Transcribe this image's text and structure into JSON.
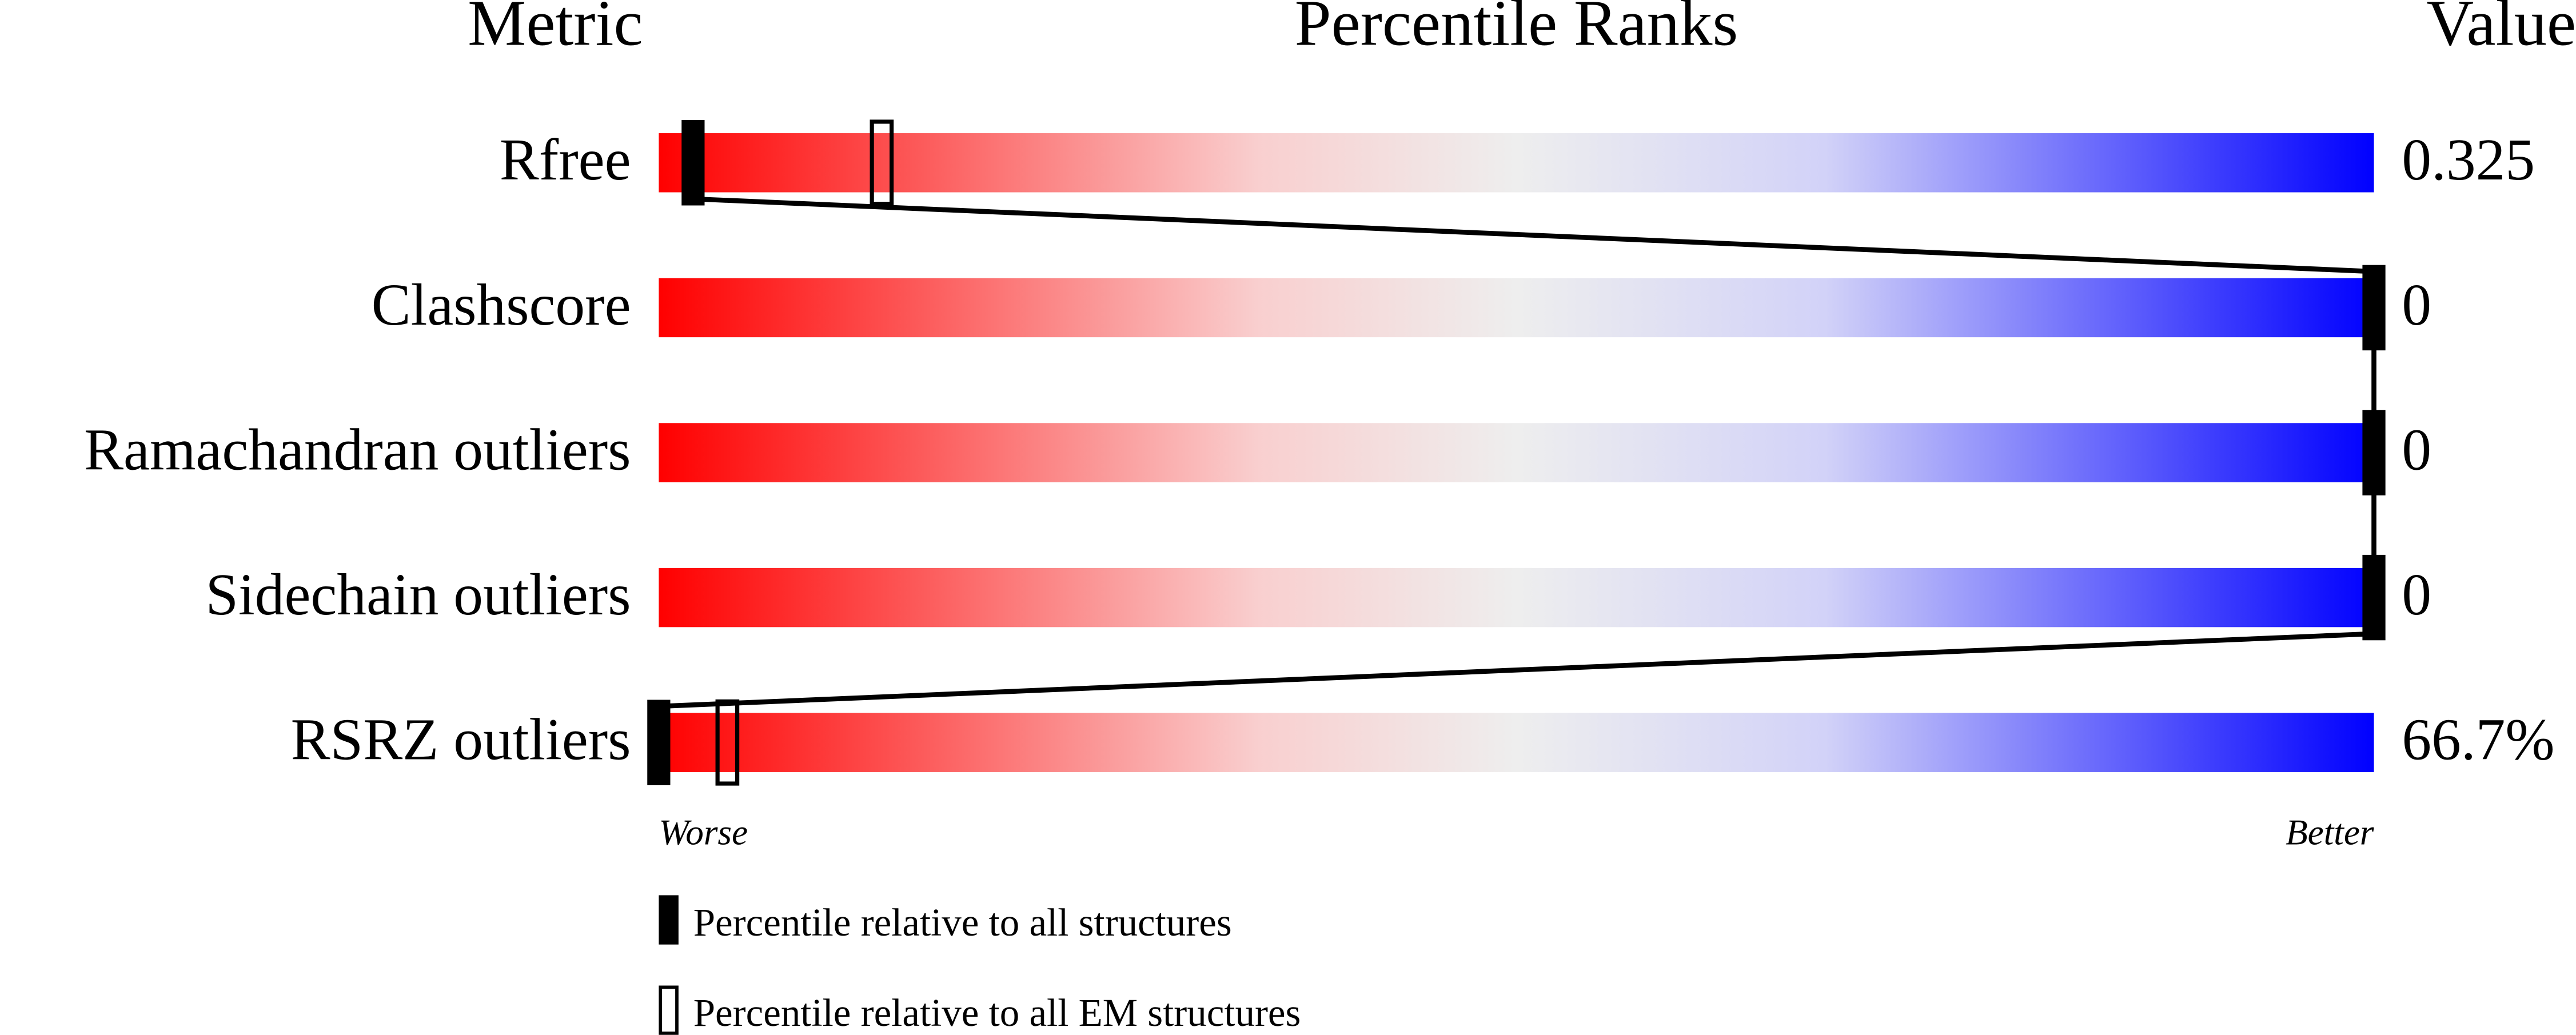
{
  "chart_data": {
    "type": "percentile-slider",
    "headers": [
      "Metric",
      "Percentile Ranks",
      "Value"
    ],
    "categories": [
      "Rfree",
      "Clashscore",
      "Ramachandran outliers",
      "Sidechain outliers",
      "RSRZ outliers"
    ],
    "metric_values": [
      "0.325",
      "0",
      "0",
      "0",
      "66.7%"
    ],
    "series": [
      {
        "name": "Percentile relative to all structures",
        "color": "#000000",
        "values": [
          2,
          100,
          100,
          100,
          0
        ]
      },
      {
        "name": "Percentile relative to all EM structures",
        "color": "#000000",
        "values": [
          13,
          null,
          null,
          null,
          4
        ]
      }
    ],
    "xlim": [
      0,
      100
    ],
    "axis_labels": [
      "Worse",
      "Better"
    ]
  }
}
